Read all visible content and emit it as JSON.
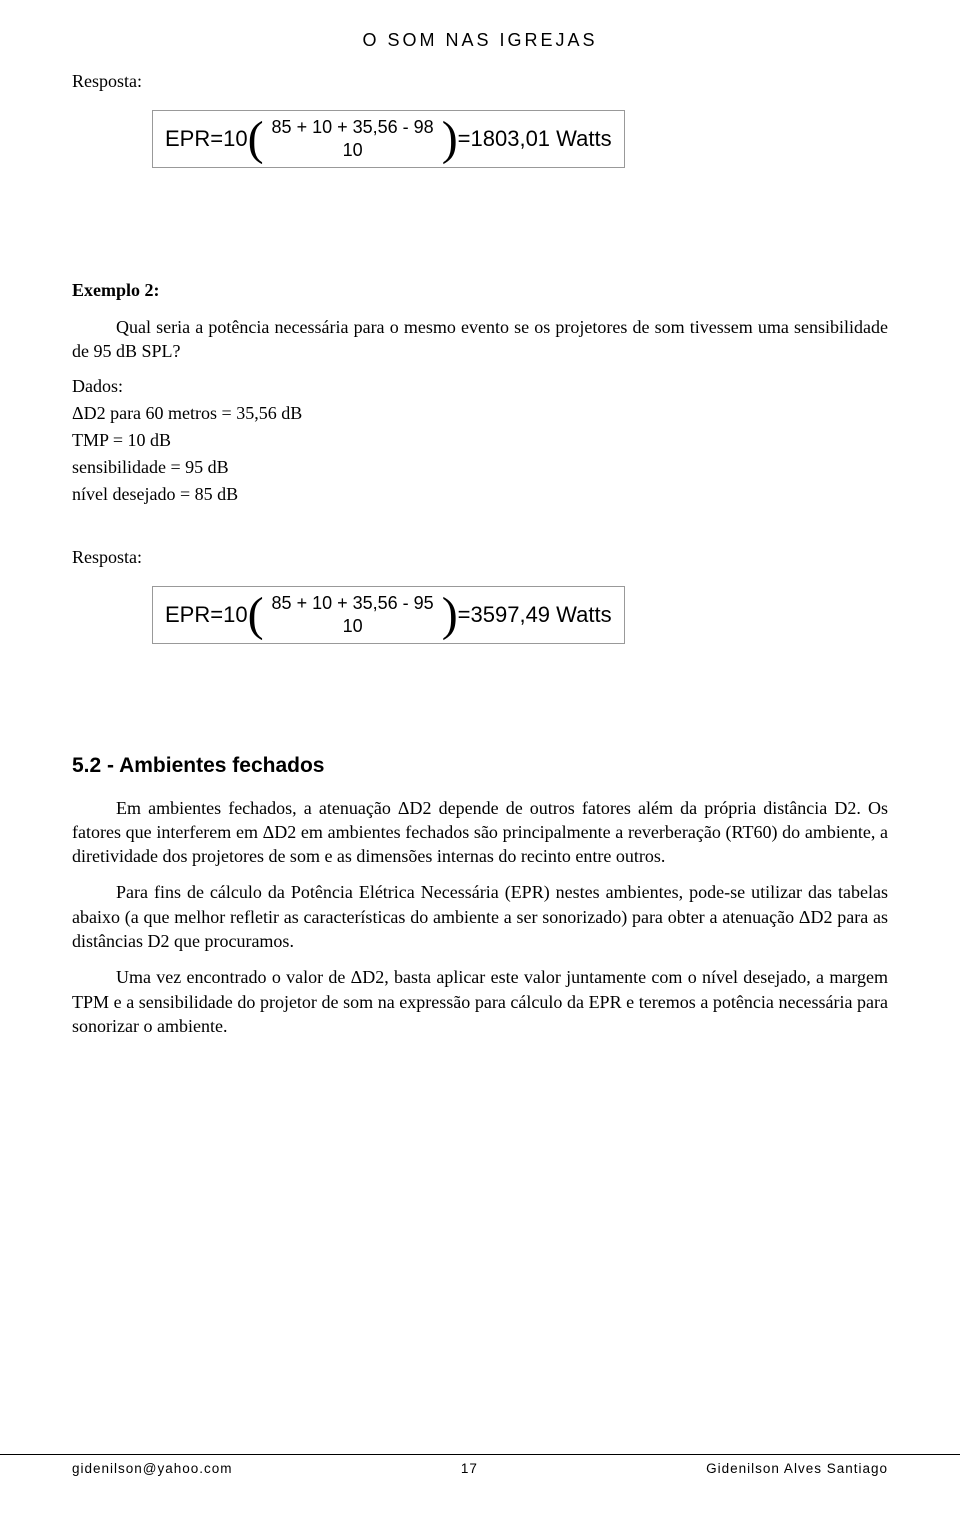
{
  "header": {
    "title": "O SOM NAS IGREJAS"
  },
  "resposta1": {
    "label": "Resposta:",
    "formula": {
      "lhs": "EPR=10",
      "numerator": "85 + 10 + 35,56 - 98",
      "denominator": "10",
      "result": "=1803,01 Watts"
    }
  },
  "exemplo2": {
    "label": "Exemplo 2:",
    "question": "Qual seria a potência necessária para o mesmo evento se os projetores de som tivessem uma sensibilidade de 95 dB SPL?",
    "dados_label": "Dados:",
    "dados": [
      "ΔD2 para 60 metros = 35,56 dB",
      "TMP  = 10 dB",
      "sensibilidade = 95 dB",
      "nível desejado = 85 dB"
    ]
  },
  "resposta2": {
    "label": "Resposta:",
    "formula": {
      "lhs": "EPR=10",
      "numerator": "85 + 10 + 35,56 - 95",
      "denominator": "10",
      "result": "=3597,49 Watts"
    }
  },
  "section": {
    "heading": "5.2 - Ambientes fechados",
    "p1": "Em ambientes fechados, a atenuação ΔD2 depende de outros fatores além da própria distância D2. Os fatores que interferem em ΔD2 em ambientes fechados são principalmente a reverberação (RT60) do ambiente, a diretividade dos projetores de som e as dimensões internas do recinto entre outros.",
    "p2": "Para fins de cálculo da Potência Elétrica Necessária (EPR) nestes ambientes, pode-se utilizar das tabelas abaixo (a que melhor  refletir as características do ambiente a ser sonorizado) para obter a atenuação ΔD2 para as distâncias D2 que procuramos.",
    "p3": "Uma vez encontrado o valor de ΔD2, basta aplicar este valor juntamente com o nível desejado, a margem TPM e a sensibilidade do projetor de som na expressão para cálculo da EPR e teremos a potência necessária para sonorizar o  ambiente."
  },
  "footer": {
    "email": "gidenilson@yahoo.com",
    "page": "17",
    "author": "Gidenilson Alves Santiago"
  },
  "styling": {
    "page_background": "#ffffff",
    "text_color": "#000000",
    "border_color": "#999999",
    "body_font": "Times New Roman",
    "header_font": "Century Gothic",
    "heading_font": "Arial",
    "body_fontsize": 18,
    "heading_fontsize": 21,
    "formula_fontsize": 22
  }
}
